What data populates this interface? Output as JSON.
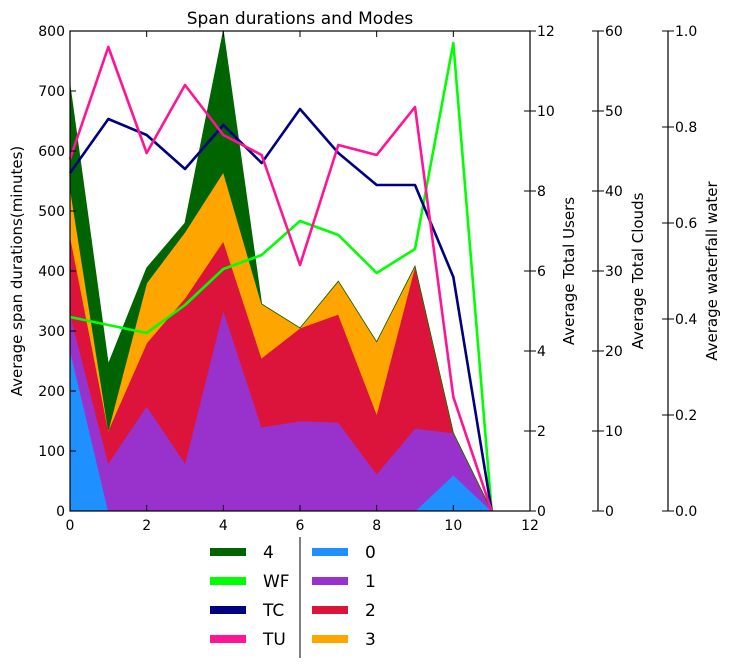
{
  "chart_data": {
    "type": "area",
    "title": "Span durations and Modes",
    "x": [
      0,
      1,
      2,
      3,
      4,
      5,
      6,
      7,
      8,
      9,
      10,
      11
    ],
    "xlim": [
      0,
      12
    ],
    "xticks": [
      "0",
      "2",
      "4",
      "6",
      "8",
      "10",
      "12"
    ],
    "grid": false,
    "stack_series": [
      {
        "name": "0",
        "color": "#1e90ff",
        "values": [
          270,
          0,
          0,
          0,
          0,
          0,
          0,
          0,
          0,
          0,
          60,
          0
        ]
      },
      {
        "name": "1",
        "color": "#9932cc",
        "values": [
          60,
          80,
          175,
          80,
          335,
          140,
          150,
          148,
          62,
          138,
          70,
          0
        ]
      },
      {
        "name": "2",
        "color": "#dc143c",
        "values": [
          130,
          55,
          105,
          275,
          115,
          115,
          155,
          180,
          100,
          270,
          0,
          0
        ]
      },
      {
        "name": "3",
        "color": "#ffa500",
        "values": [
          80,
          0,
          100,
          110,
          115,
          90,
          0,
          55,
          120,
          0,
          0,
          0
        ]
      },
      {
        "name": "4",
        "color": "#006400",
        "values": [
          170,
          110,
          25,
          15,
          235,
          0,
          0,
          0,
          0,
          0,
          0,
          0
        ]
      }
    ],
    "line_series": [
      {
        "name": "WF",
        "color": "#00ff00",
        "axis": "users",
        "values": [
          4.85,
          4.65,
          4.45,
          5.15,
          6.05,
          6.4,
          7.25,
          6.9,
          5.95,
          6.55,
          11.7,
          0
        ]
      },
      {
        "name": "TC",
        "color": "#000080",
        "axis": "users",
        "values": [
          8.45,
          9.8,
          9.4,
          8.55,
          9.65,
          8.7,
          10.05,
          8.95,
          8.15,
          8.15,
          5.85,
          0
        ]
      },
      {
        "name": "TU",
        "color": "#ff1493",
        "axis": "users",
        "values": [
          8.8,
          11.6,
          8.95,
          10.65,
          9.4,
          8.9,
          6.15,
          9.15,
          8.9,
          10.1,
          2.85,
          0
        ]
      }
    ],
    "axes": {
      "left": {
        "label": "Average span durations(minutes)",
        "ylim": [
          0,
          800
        ],
        "ticks": [
          "0",
          "100",
          "200",
          "300",
          "400",
          "500",
          "600",
          "700",
          "800"
        ]
      },
      "users": {
        "label": "Average Total Users",
        "ylim": [
          0,
          12
        ],
        "ticks": [
          "0",
          "2",
          "4",
          "6",
          "8",
          "10",
          "12"
        ]
      },
      "clouds": {
        "label": "Average Total Clouds",
        "ylim": [
          0,
          60
        ],
        "ticks": [
          "0",
          "10",
          "20",
          "30",
          "40",
          "50",
          "60"
        ]
      },
      "water": {
        "label": "Average waterfall water",
        "ylim": [
          0,
          1
        ],
        "ticks": [
          "0.0",
          "0.2",
          "0.4",
          "0.6",
          "0.8",
          "1.0"
        ]
      }
    },
    "legend": {
      "placement": "bottom-center",
      "columns": [
        [
          "4",
          "WF",
          "TC",
          "TU"
        ],
        [
          "0",
          "1",
          "2",
          "3"
        ]
      ]
    }
  }
}
